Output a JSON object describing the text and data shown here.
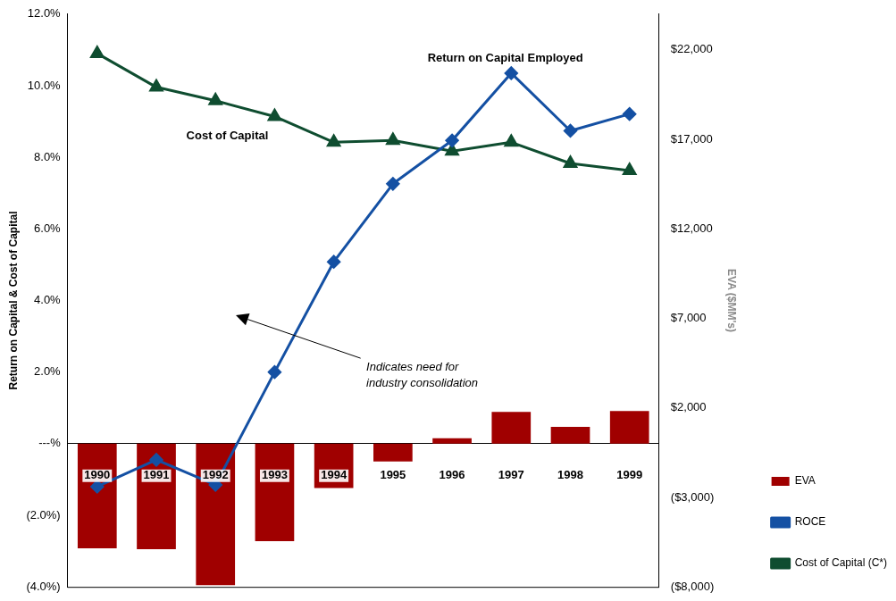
{
  "chart_data": {
    "type": "bar",
    "categories": [
      "1990",
      "1991",
      "1992",
      "1993",
      "1994",
      "1995",
      "1996",
      "1997",
      "1998",
      "1999"
    ],
    "ylabel": "Return on Capital & Cost of Capital",
    "y2label": "EVA ($MM's)",
    "series": [
      {
        "name": "EVA",
        "axis": "y2",
        "color": "#a00000",
        "values": [
          -5850,
          -5900,
          -7900,
          -5450,
          -2480,
          -990,
          300,
          1780,
          940,
          1830
        ]
      },
      {
        "name": "ROCE",
        "type": "line",
        "marker": "diamond",
        "color": "#1450a3",
        "values": [
          -1.2,
          -0.45,
          -1.15,
          2.0,
          5.08,
          7.26,
          8.47,
          10.35,
          8.74,
          9.21
        ]
      },
      {
        "name": "Cost of Capital (C*)",
        "type": "line",
        "marker": "triangle",
        "color": "#0f4d30",
        "values": [
          10.9,
          9.96,
          9.58,
          9.14,
          8.42,
          8.47,
          8.17,
          8.42,
          7.83,
          7.63
        ]
      }
    ],
    "ylim": [
      -4,
      12
    ],
    "yticks": [
      {
        "value": -4,
        "label": "(4.0%)"
      },
      {
        "value": -2,
        "label": "(2.0%)"
      },
      {
        "value": 0,
        "label": "---%"
      },
      {
        "value": 2,
        "label": "2.0%"
      },
      {
        "value": 4,
        "label": "4.0%"
      },
      {
        "value": 6,
        "label": "6.0%"
      },
      {
        "value": 8,
        "label": "8.0%"
      },
      {
        "value": 10,
        "label": "10.0%"
      },
      {
        "value": 12,
        "label": "12.0%"
      }
    ],
    "y2lim": [
      -8000,
      24000
    ],
    "y2ticks": [
      {
        "value": -8000,
        "label": "($8,000)"
      },
      {
        "value": -3000,
        "label": "($3,000)"
      },
      {
        "value": 2000,
        "label": "$2,000"
      },
      {
        "value": 7000,
        "label": "$7,000"
      },
      {
        "value": 12000,
        "label": "$12,000"
      },
      {
        "value": 17000,
        "label": "$17,000"
      },
      {
        "value": 22000,
        "label": "$22,000"
      }
    ],
    "annotations": [
      "Return on Capital Employed",
      "Cost of Capital",
      "Indicates need for industry consolidation"
    ],
    "grid": false,
    "legend": "bottom right",
    "line_style": "solid"
  }
}
